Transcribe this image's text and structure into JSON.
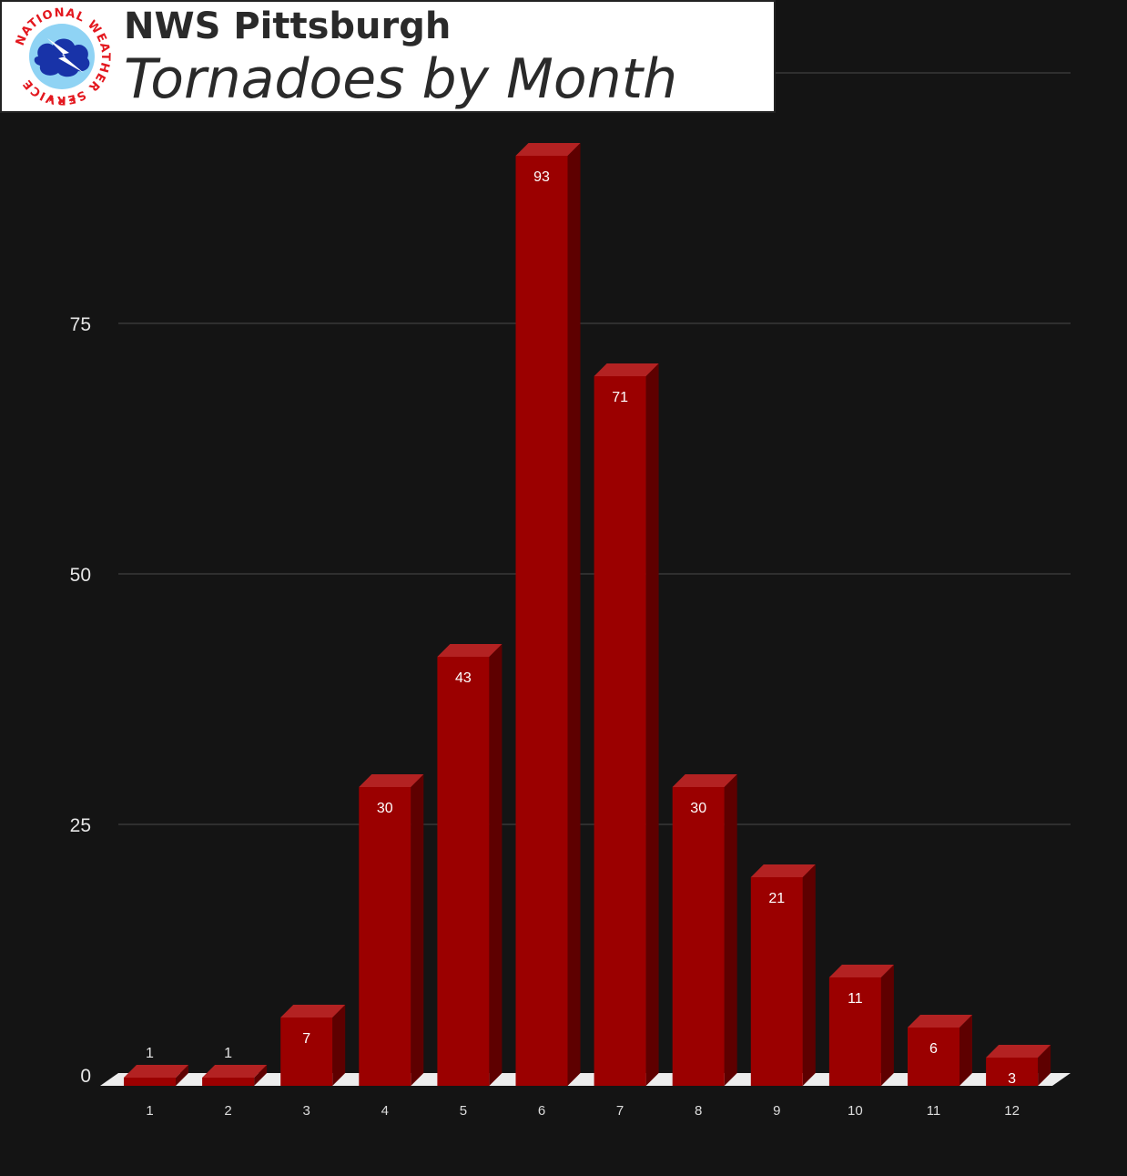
{
  "header": {
    "org_title": "NWS Pittsburgh",
    "chart_title": "Tornadoes by Month",
    "logo_ring_text": "NATIONAL WEATHER SERVICE"
  },
  "colors": {
    "background": "#141414",
    "bar_front": "#9b0000",
    "bar_top": "#b32222",
    "bar_side": "#5e0000",
    "floor": "#ededed",
    "grid": "#4a4a4a",
    "logo_red": "#e3171e",
    "logo_blue": "#1833a8"
  },
  "chart_data": {
    "type": "bar",
    "title": "Tornadoes by Month",
    "xlabel": "",
    "ylabel": "",
    "categories": [
      "1",
      "2",
      "3",
      "4",
      "5",
      "6",
      "7",
      "8",
      "9",
      "10",
      "11",
      "12"
    ],
    "values": [
      1,
      1,
      7,
      30,
      43,
      93,
      71,
      30,
      21,
      11,
      6,
      3
    ],
    "yticks": [
      0,
      25,
      50,
      75
    ],
    "ylim": [
      0,
      100
    ],
    "grid": true,
    "legend": "none",
    "style": "3d"
  }
}
